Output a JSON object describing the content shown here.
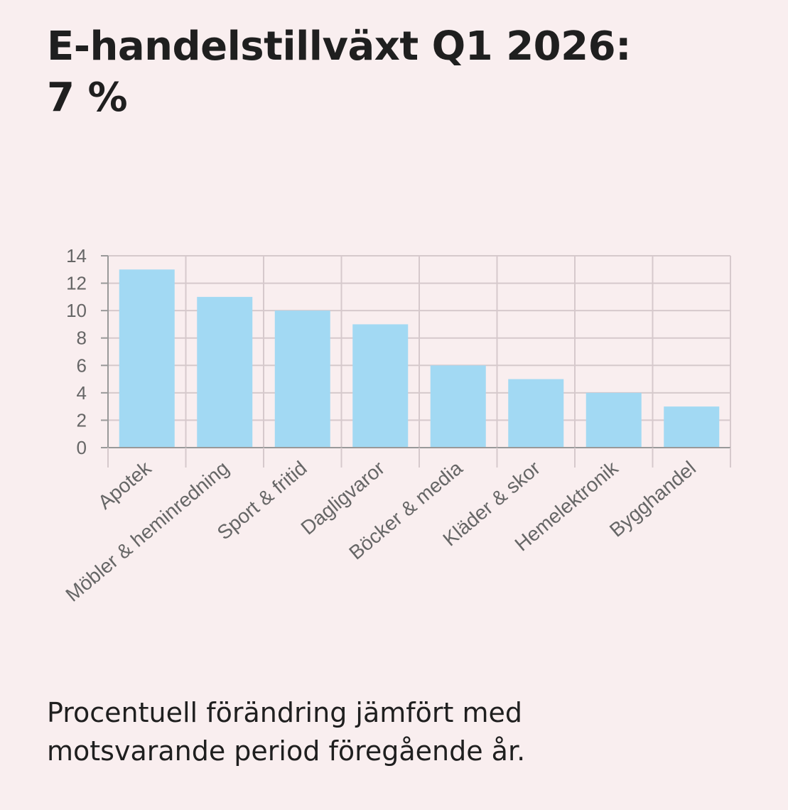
{
  "title_line1": "E-handelstillväxt Q1 2026:",
  "title_line2": "7 %",
  "caption_line1": "Procentuell förändring jämfört med",
  "caption_line2": "motsvarande period föregående år.",
  "colors": {
    "background": "#f9eeef",
    "bar": "#a2d9f3",
    "grid": "#d6c9cc",
    "axis": "#999999",
    "tick_text": "#666666",
    "title_text": "#1f1f1f"
  },
  "chart_data": {
    "type": "bar",
    "categories": [
      "Apotek",
      "Möbler & heminredning",
      "Sport & fritid",
      "Dagligvaror",
      "Böcker & media",
      "Kläder & skor",
      "Hemelektronik",
      "Bygghandel"
    ],
    "values": [
      13,
      11,
      10,
      9,
      6,
      5,
      4,
      3
    ],
    "ylim": [
      0,
      14
    ],
    "yticks": [
      "0",
      "2",
      "4",
      "6",
      "8",
      "10",
      "12",
      "14"
    ],
    "grid": true,
    "legend": "none"
  }
}
